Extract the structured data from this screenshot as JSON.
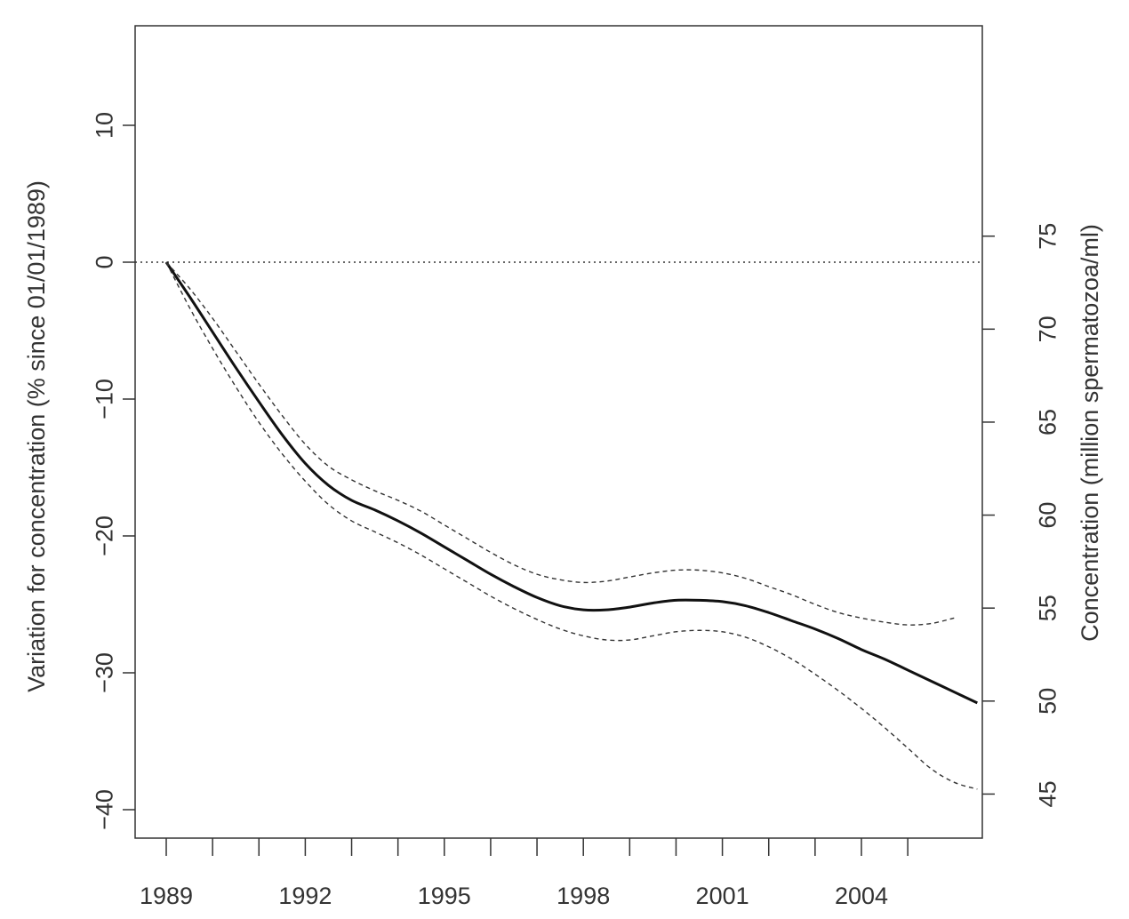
{
  "chart_data": {
    "type": "line",
    "title": "",
    "ylabel_left": "Variation for concentration (% since 01/01/1989)",
    "ylabel_right": "Concentration (million spermatozoa/ml)",
    "xlabel": "",
    "xlim": [
      1988.7,
      2007.0
    ],
    "ylim_left": [
      -42,
      17.2
    ],
    "left_ticks": [
      10,
      0,
      -10,
      -20,
      -30,
      -40
    ],
    "left_tick_labels": [
      "10",
      "0",
      "−10",
      "−20",
      "−30",
      "−40"
    ],
    "right_ticks": [
      75,
      70,
      65,
      60,
      55,
      50,
      45
    ],
    "right_tick_labels": [
      "75",
      "70",
      "65",
      "60",
      "55",
      "50",
      "45"
    ],
    "right_axis_note": "right axis maps concentration to % change relative to ~73.6 million/ml at 1989",
    "x_major_ticks": [
      1989,
      1992,
      1995,
      1998,
      2001,
      2004
    ],
    "x_major_labels": [
      "1989",
      "1992",
      "1995",
      "1998",
      "2001",
      "2004"
    ],
    "x_minor_ticks": [
      1990,
      1991,
      1993,
      1994,
      1996,
      1997,
      1999,
      2000,
      2002,
      2003,
      2005
    ],
    "reference_line": {
      "y": 0,
      "style": "dotted"
    },
    "series": [
      {
        "style": "solid",
        "x": [
          1989.0,
          1989.5,
          1990.0,
          1990.5,
          1991.0,
          1991.5,
          1992.0,
          1992.5,
          1993.0,
          1993.5,
          1994.0,
          1994.5,
          1995.0,
          1995.5,
          1996.0,
          1996.5,
          1997.0,
          1997.5,
          1998.0,
          1998.5,
          1999.0,
          1999.5,
          2000.0,
          2000.5,
          2001.0,
          2001.5,
          2002.0,
          2002.5,
          2003.0,
          2003.5,
          2004.0,
          2004.5,
          2005.0,
          2005.5,
          2006.0,
          2006.5
        ],
        "y": [
          0,
          -2.5,
          -5.1,
          -7.7,
          -10.2,
          -12.6,
          -14.7,
          -16.3,
          -17.4,
          -18.1,
          -18.9,
          -19.8,
          -20.8,
          -21.8,
          -22.8,
          -23.7,
          -24.5,
          -25.1,
          -25.4,
          -25.4,
          -25.2,
          -24.9,
          -24.7,
          -24.7,
          -24.8,
          -25.1,
          -25.6,
          -26.2,
          -26.8,
          -27.5,
          -28.3,
          -29.0,
          -29.8,
          -30.6,
          -31.4,
          -32.2
        ]
      },
      {
        "style": "dashed",
        "x": [
          1989.0,
          1989.5,
          1990.0,
          1990.5,
          1991.0,
          1991.5,
          1992.0,
          1992.5,
          1993.0,
          1993.5,
          1994.0,
          1994.5,
          1995.0,
          1995.5,
          1996.0,
          1996.5,
          1997.0,
          1997.5,
          1998.0,
          1998.5,
          1999.0,
          1999.5,
          2000.0,
          2000.5,
          2001.0,
          2001.5,
          2002.0,
          2002.5,
          2003.0,
          2003.5,
          2004.0,
          2004.5,
          2005.0,
          2005.5,
          2006.0
        ],
        "y": [
          0,
          -1.9,
          -4.1,
          -6.5,
          -8.9,
          -11.2,
          -13.3,
          -14.9,
          -15.9,
          -16.7,
          -17.4,
          -18.2,
          -19.2,
          -20.2,
          -21.2,
          -22.1,
          -22.8,
          -23.2,
          -23.4,
          -23.3,
          -23.0,
          -22.7,
          -22.5,
          -22.5,
          -22.7,
          -23.1,
          -23.7,
          -24.3,
          -25.0,
          -25.6,
          -26.0,
          -26.3,
          -26.5,
          -26.4,
          -26.0
        ]
      },
      {
        "style": "dashed",
        "x": [
          1989.0,
          1989.5,
          1990.0,
          1990.5,
          1991.0,
          1991.5,
          1992.0,
          1992.5,
          1993.0,
          1993.5,
          1994.0,
          1994.5,
          1995.0,
          1995.5,
          1996.0,
          1996.5,
          1997.0,
          1997.5,
          1998.0,
          1998.5,
          1999.0,
          1999.5,
          2000.0,
          2000.5,
          2001.0,
          2001.5,
          2002.0,
          2002.5,
          2003.0,
          2003.5,
          2004.0,
          2004.5,
          2005.0,
          2005.5,
          2006.0,
          2006.5
        ],
        "y": [
          0,
          -3.3,
          -6.3,
          -9.1,
          -11.7,
          -14.0,
          -16.0,
          -17.7,
          -18.9,
          -19.7,
          -20.5,
          -21.4,
          -22.4,
          -23.4,
          -24.4,
          -25.3,
          -26.1,
          -26.8,
          -27.3,
          -27.6,
          -27.6,
          -27.3,
          -27.0,
          -26.9,
          -27.0,
          -27.4,
          -28.1,
          -29.0,
          -30.1,
          -31.3,
          -32.6,
          -34.0,
          -35.5,
          -37.0,
          -38.0,
          -38.5
        ]
      }
    ]
  }
}
